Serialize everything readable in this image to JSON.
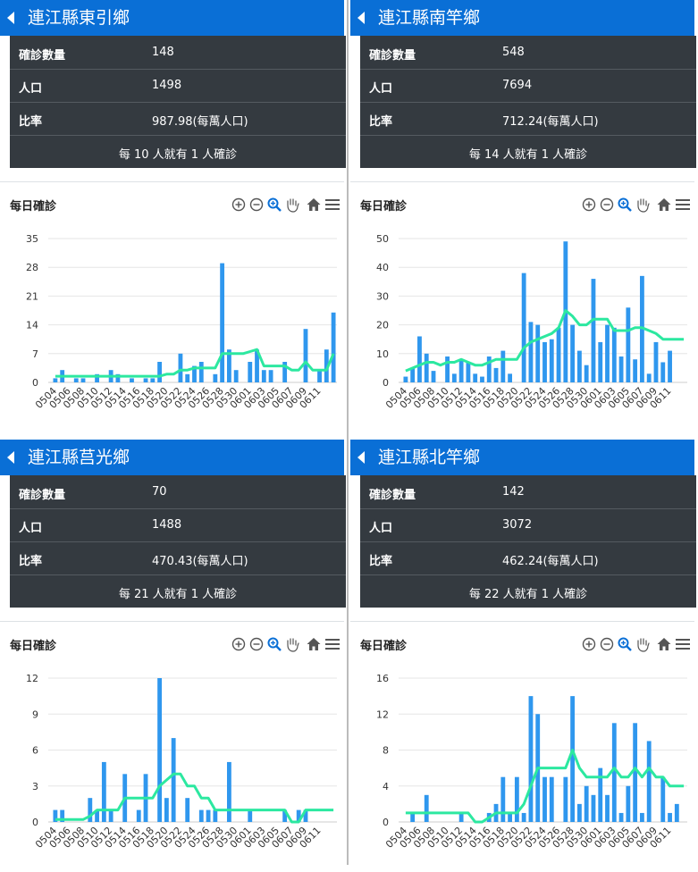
{
  "labels": {
    "count": "確診數量",
    "population": "人口",
    "ratio": "比率",
    "chart_title": "每日確診"
  },
  "panels": [
    {
      "title": "連江縣東引鄉",
      "count": "148",
      "population": "1498",
      "ratio": "987.98(每萬人口)",
      "summary": "每 10 人就有 1 人確診",
      "chart_data": {
        "type": "bar",
        "yticks": [
          "0",
          "7",
          "14",
          "21",
          "28",
          "35"
        ],
        "ylim": [
          0,
          35
        ],
        "values": [
          1,
          3,
          0,
          1,
          1,
          0,
          2,
          0,
          3,
          2,
          0,
          1,
          0,
          1,
          1,
          5,
          0,
          0,
          7,
          2,
          4,
          5,
          0,
          2,
          29,
          8,
          3,
          0,
          5,
          8,
          3,
          3,
          0,
          5,
          0,
          0,
          13,
          0,
          3,
          8,
          17
        ],
        "line": [
          1.5,
          1.5,
          1.5,
          1.5,
          1.5,
          1.5,
          1.5,
          1.5,
          1.5,
          1.5,
          1.5,
          1.5,
          1.5,
          1.5,
          1.5,
          1.5,
          2,
          2,
          3,
          3,
          3.5,
          3.5,
          3.5,
          3.5,
          7,
          7,
          7,
          7,
          7.5,
          8,
          4,
          4,
          4,
          4,
          3,
          3,
          5,
          3,
          3,
          3,
          7
        ]
      }
    },
    {
      "title": "連江縣南竿鄉",
      "count": "548",
      "population": "7694",
      "ratio": "712.24(每萬人口)",
      "summary": "每 14 人就有 1 人確診",
      "chart_data": {
        "type": "bar",
        "yticks": [
          "0",
          "10",
          "20",
          "30",
          "40",
          "50"
        ],
        "ylim": [
          0,
          50
        ],
        "values": [
          2,
          5,
          16,
          10,
          4,
          0,
          9,
          3,
          8,
          7,
          3,
          2,
          9,
          5,
          11,
          3,
          0,
          38,
          21,
          20,
          14,
          15,
          19,
          49,
          20,
          11,
          6,
          36,
          14,
          20,
          19,
          9,
          26,
          8,
          37,
          3,
          14,
          7,
          11,
          0,
          0
        ],
        "line": [
          4,
          5,
          6,
          7,
          7,
          6,
          7,
          7,
          8,
          7,
          6,
          6,
          7,
          8,
          8,
          8,
          8,
          12,
          14,
          15,
          16,
          17,
          19,
          25,
          23,
          20,
          20,
          22,
          22,
          22,
          18,
          18,
          18,
          19,
          19,
          18,
          17,
          15,
          15,
          15,
          15
        ]
      }
    },
    {
      "title": "連江縣莒光鄉",
      "count": "70",
      "population": "1488",
      "ratio": "470.43(每萬人口)",
      "summary": "每 21 人就有 1 人確診",
      "chart_data": {
        "type": "bar",
        "yticks": [
          "0",
          "3",
          "6",
          "9",
          "12"
        ],
        "ylim": [
          0,
          12
        ],
        "values": [
          1,
          1,
          0,
          0,
          0,
          2,
          1,
          5,
          1,
          0,
          4,
          0,
          1,
          4,
          0,
          12,
          2,
          7,
          0,
          2,
          0,
          1,
          1,
          1,
          0,
          5,
          0,
          0,
          1,
          0,
          0,
          0,
          0,
          1,
          0,
          1,
          1,
          0,
          0,
          0,
          0
        ],
        "line": [
          0.2,
          0.2,
          0.2,
          0.2,
          0.2,
          0.5,
          1,
          1,
          1,
          1,
          2,
          2,
          2,
          2,
          2,
          3,
          3.5,
          4,
          4,
          3,
          3,
          2,
          2,
          1,
          1,
          1,
          1,
          1,
          1,
          1,
          1,
          1,
          1,
          1,
          0,
          0,
          1,
          1,
          1,
          1,
          1
        ]
      }
    },
    {
      "title": "連江縣北竿鄉",
      "count": "142",
      "population": "3072",
      "ratio": "462.24(每萬人口)",
      "summary": "每 22 人就有 1 人確診",
      "chart_data": {
        "type": "bar",
        "yticks": [
          "0",
          "4",
          "8",
          "12",
          "16"
        ],
        "ylim": [
          0,
          16
        ],
        "values": [
          0,
          1,
          0,
          3,
          0,
          0,
          0,
          0,
          1,
          0,
          0,
          0,
          1,
          2,
          5,
          1,
          5,
          1,
          14,
          12,
          5,
          5,
          0,
          5,
          14,
          2,
          4,
          3,
          6,
          3,
          11,
          1,
          4,
          11,
          1,
          9,
          0,
          5,
          1,
          2,
          0
        ],
        "line": [
          1,
          1,
          1,
          1,
          1,
          1,
          1,
          1,
          1,
          1,
          0,
          0,
          0.5,
          1,
          1,
          1,
          1,
          2,
          4,
          6,
          6,
          6,
          6,
          6,
          8,
          6,
          5,
          5,
          5,
          5,
          6,
          5,
          5,
          6,
          5,
          6,
          5,
          5,
          4,
          4,
          4
        ]
      }
    }
  ],
  "xticks": [
    "0504",
    "0506",
    "0508",
    "0510",
    "0512",
    "0514",
    "0516",
    "0518",
    "0520",
    "0522",
    "0524",
    "0526",
    "0528",
    "0530",
    "0601",
    "0603",
    "0605",
    "0607",
    "0609",
    "0611"
  ],
  "colors": {
    "title_bar": "#0a6fd6",
    "stats_bg": "#343a40",
    "bar": "#2f97ee",
    "line": "#2ce8a0",
    "icon": "#555555"
  },
  "toolbar_icons": [
    "zoom-in-icon",
    "zoom-out-icon",
    "zoom-reset-icon",
    "pan-hand-icon",
    "home-icon",
    "menu-icon"
  ]
}
